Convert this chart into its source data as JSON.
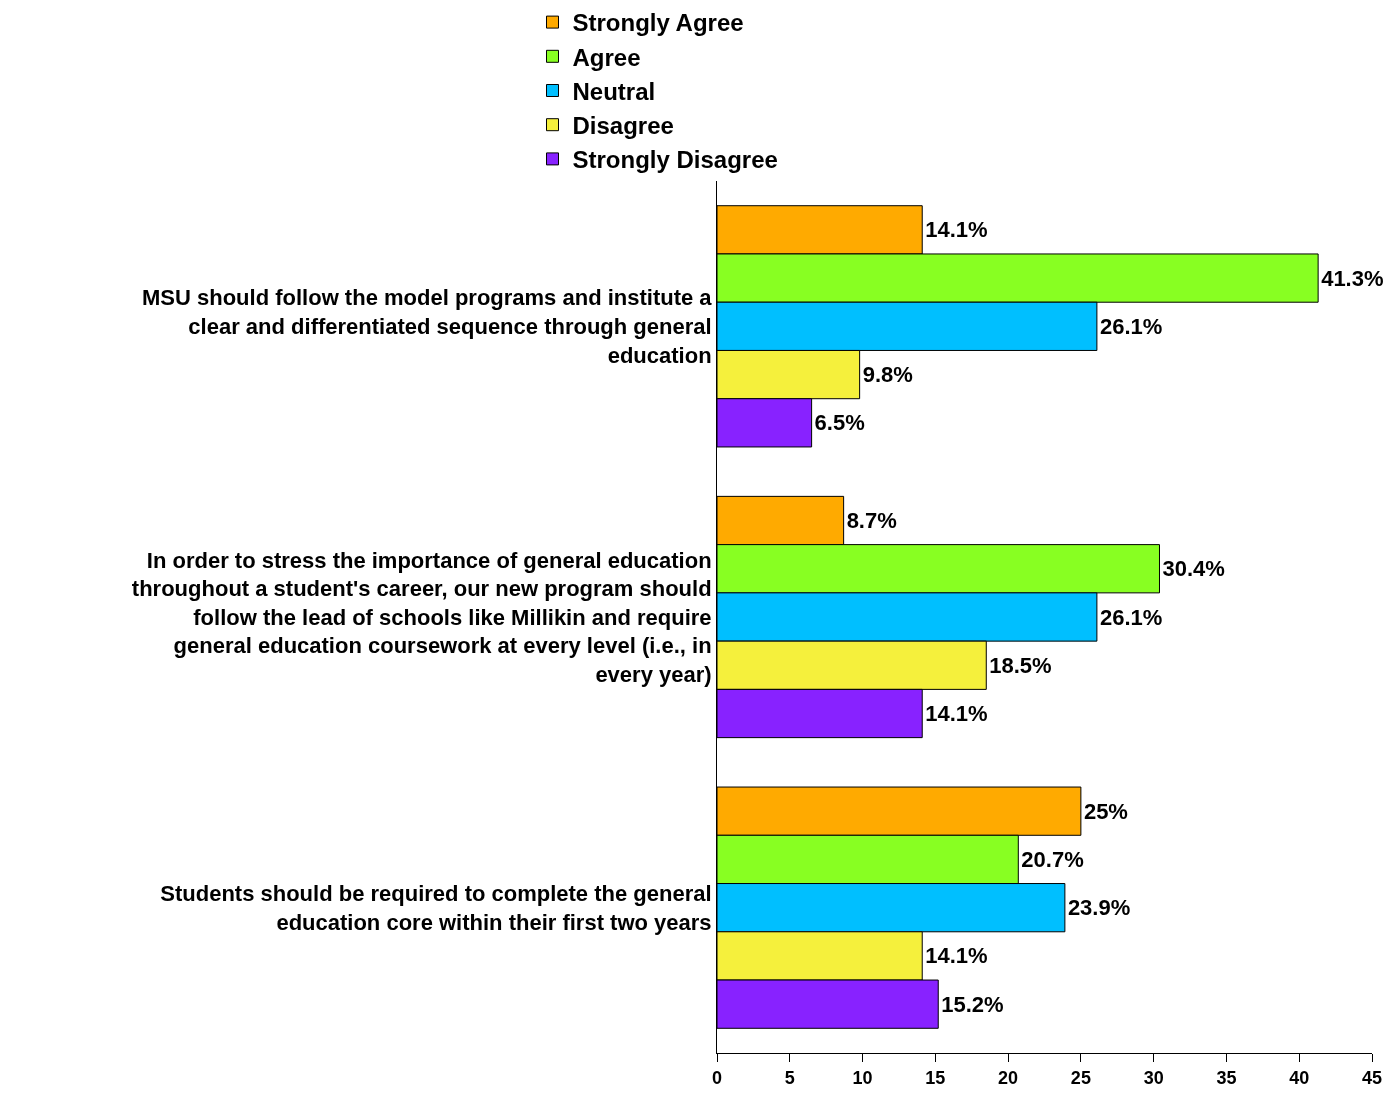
{
  "chart_data": {
    "type": "bar",
    "orientation": "horizontal",
    "categories": [
      "MSU should follow the model programs and institute a clear and differentiated sequence through general education",
      "In order to stress the importance of general education throughout a student's career, our new program should follow the lead of schools like Millikin and require general education coursework at every level (i.e., in every year)",
      "Students should be required to complete the general education core within their first two years"
    ],
    "series": [
      {
        "name": "Strongly Agree",
        "color": "#ffaa00",
        "values": [
          14.1,
          8.7,
          25
        ],
        "value_labels": [
          "14.1%",
          "8.7%",
          "25%"
        ]
      },
      {
        "name": "Agree",
        "color": "#88ff22",
        "values": [
          41.3,
          30.4,
          20.7
        ],
        "value_labels": [
          "41.3%",
          "30.4%",
          "20.7%"
        ]
      },
      {
        "name": "Neutral",
        "color": "#00bfff",
        "values": [
          26.1,
          26.1,
          23.9
        ],
        "value_labels": [
          "26.1%",
          "26.1%",
          "23.9%"
        ]
      },
      {
        "name": "Disagree",
        "color": "#f5f03c",
        "values": [
          9.8,
          18.5,
          14.1
        ],
        "value_labels": [
          "9.8%",
          "18.5%",
          "14.1%"
        ]
      },
      {
        "name": "Strongly Disagree",
        "color": "#8822ff",
        "values": [
          6.5,
          14.1,
          15.2
        ],
        "value_labels": [
          "6.5%",
          "14.1%",
          "15.2%"
        ]
      }
    ],
    "xlim": [
      0,
      45
    ],
    "xticks": [
      0,
      5,
      10,
      15,
      20,
      25,
      30,
      35,
      40,
      45
    ],
    "grid": false,
    "legend": "top"
  }
}
